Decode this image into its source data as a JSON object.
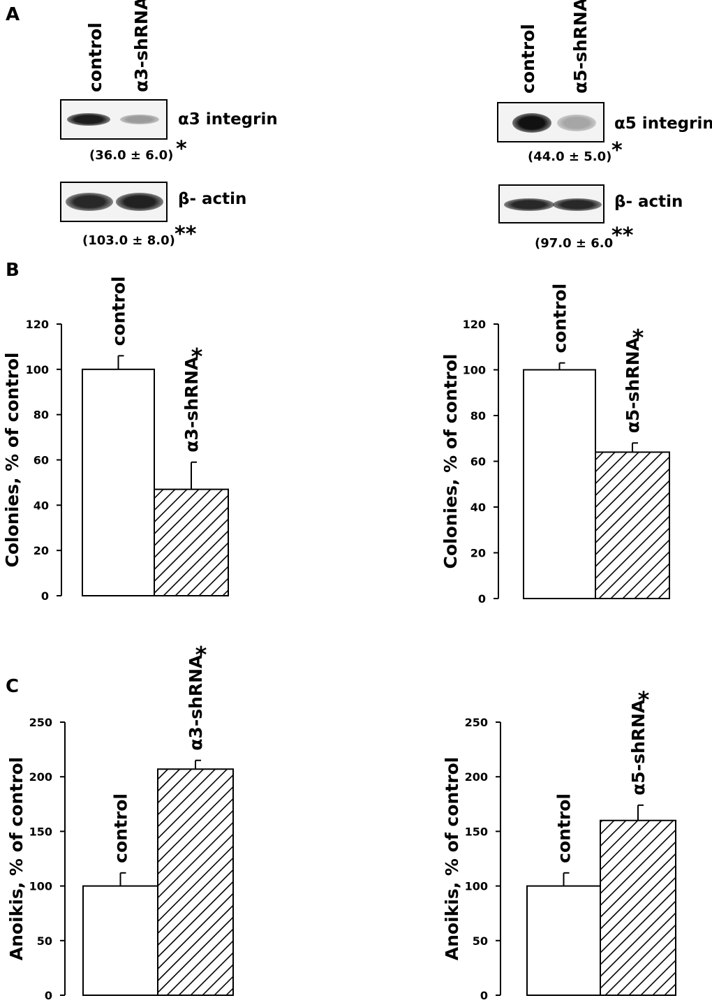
{
  "panels": {
    "a": "A",
    "b": "B",
    "c": "C"
  },
  "western_left": {
    "lanes": [
      "control",
      "α3-shRNA"
    ],
    "target_label": "α3 integrin",
    "target_quant": "(36.0 ± 6.0)",
    "target_star": "*",
    "target_intensity": [
      0.9,
      0.35
    ],
    "actin_label": "β- actin",
    "actin_quant": "(103.0 ± 8.0)",
    "actin_star": "**",
    "actin_intensity": [
      0.85,
      0.88
    ]
  },
  "western_right": {
    "lanes": [
      "control",
      "α5-shRNA"
    ],
    "target_label": "α5 integrin",
    "target_quant": "(44.0 ± 5.0)",
    "target_star": "*",
    "target_intensity": [
      0.95,
      0.3
    ],
    "actin_label": "β- actin",
    "actin_quant": "(97.0 ± 6.0",
    "actin_star": "**",
    "actin_intensity": [
      0.85,
      0.85
    ]
  },
  "chart_data": [
    {
      "type": "bar",
      "panel": "B",
      "categories": [
        "control",
        "α3-shRNA"
      ],
      "values": [
        100,
        47
      ],
      "errors": [
        6,
        12
      ],
      "significance": [
        "",
        "*"
      ],
      "patterns": [
        "white",
        "hatched"
      ],
      "ylabel": "Colonies, % of control",
      "ylim": [
        0,
        120
      ],
      "yticks": [
        0,
        20,
        40,
        60,
        80,
        100,
        120
      ],
      "ytick_labels": [
        "0",
        "20",
        "40",
        "60",
        "80",
        "100",
        "120"
      ]
    },
    {
      "type": "bar",
      "panel": "B",
      "categories": [
        "control",
        "α5-shRNA"
      ],
      "values": [
        100,
        64
      ],
      "errors": [
        3,
        4
      ],
      "significance": [
        "",
        "*"
      ],
      "patterns": [
        "white",
        "hatched"
      ],
      "ylabel": "Colonies, % of control",
      "ylim": [
        0,
        120
      ],
      "yticks": [
        0,
        20,
        40,
        60,
        80,
        100,
        120
      ],
      "ytick_labels": [
        "0",
        "20",
        "40",
        "60",
        "80",
        "100",
        "120"
      ]
    },
    {
      "type": "bar",
      "panel": "C",
      "categories": [
        "control",
        "α3-shRNA"
      ],
      "values": [
        100,
        207
      ],
      "errors": [
        12,
        8
      ],
      "significance": [
        "",
        "*"
      ],
      "patterns": [
        "white",
        "hatched"
      ],
      "ylabel": "Anoikis, % of control",
      "ylim": [
        0,
        250
      ],
      "yticks": [
        0,
        50,
        100,
        150,
        200,
        250
      ],
      "ytick_labels": [
        "0",
        "50",
        "100",
        "150",
        "200",
        "250"
      ]
    },
    {
      "type": "bar",
      "panel": "C",
      "categories": [
        "control",
        "α5-shRNA"
      ],
      "values": [
        100,
        160
      ],
      "errors": [
        12,
        14
      ],
      "significance": [
        "",
        "*"
      ],
      "patterns": [
        "white",
        "hatched"
      ],
      "ylabel": "Anoikis, % of control",
      "ylim": [
        0,
        250
      ],
      "yticks": [
        0,
        50,
        100,
        150,
        200,
        250
      ],
      "ytick_labels": [
        "0",
        "50",
        "100",
        "150",
        "200",
        "250"
      ]
    }
  ]
}
